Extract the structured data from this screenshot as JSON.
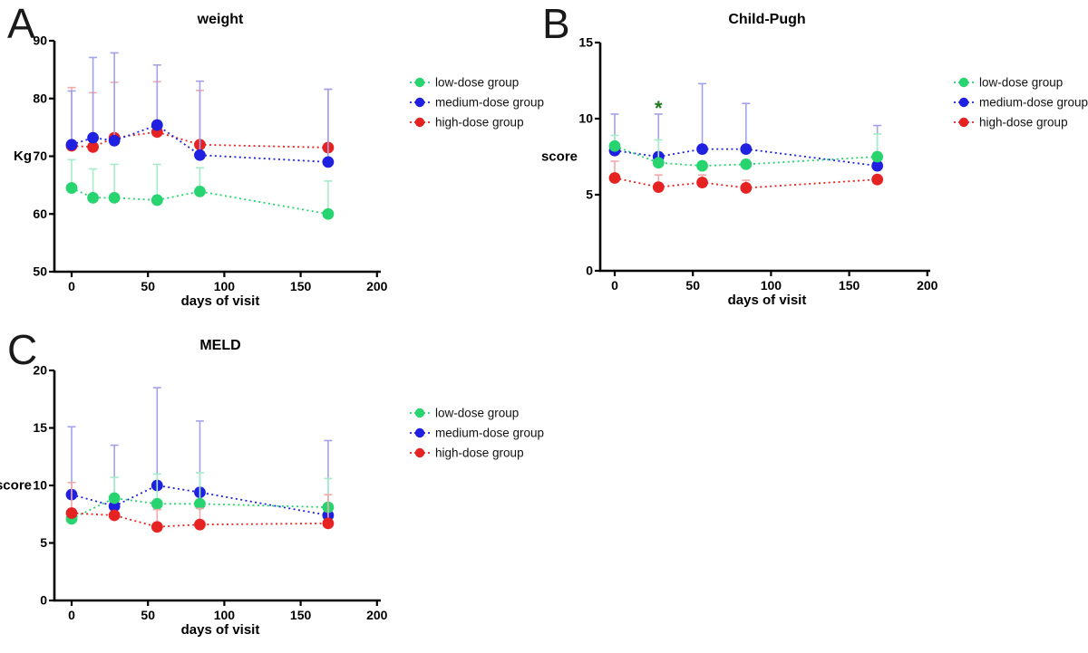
{
  "figure": {
    "background": "#ffffff",
    "legend_labels": [
      "low-dose group",
      "medium-dose group",
      "high-dose group"
    ]
  },
  "chart_data": [
    {
      "type": "line",
      "panel_label": "A",
      "title": "weight",
      "xlabel": "days of visit",
      "ylabel": "Kg",
      "x": [
        0,
        14,
        28,
        56,
        84,
        168
      ],
      "x_ticks": [
        0,
        50,
        100,
        150,
        200
      ],
      "y_ticks": [
        50,
        60,
        70,
        80,
        90
      ],
      "ylim": [
        50,
        90
      ],
      "grid": false,
      "legend_position": "right",
      "error_bars": "upper-only",
      "line_style": "dotted",
      "draw_order": [
        2,
        0,
        1
      ],
      "series": [
        {
          "name": "low-dose group",
          "color": "#27d46f",
          "error_color": "#a6ecc9",
          "values": [
            64.5,
            62.8,
            62.8,
            62.4,
            63.9,
            60.0
          ],
          "error_top": [
            69.4,
            67.8,
            68.6,
            68.6,
            68.0,
            65.7
          ]
        },
        {
          "name": "medium-dose group",
          "color": "#2020e0",
          "error_color": "#a2a2ea",
          "values": [
            72.0,
            73.2,
            72.7,
            75.4,
            70.2,
            69.0
          ],
          "error_top": [
            81.3,
            87.1,
            87.9,
            85.8,
            83.0,
            81.6
          ]
        },
        {
          "name": "high-dose group",
          "color": "#e52323",
          "error_color": "#f2a9a9",
          "values": [
            71.8,
            71.6,
            73.2,
            74.2,
            72.0,
            71.5
          ],
          "error_top": [
            81.9,
            81.0,
            82.8,
            82.9,
            81.4,
            81.6
          ]
        }
      ],
      "annotations": []
    },
    {
      "type": "line",
      "panel_label": "B",
      "title": "Child-Pugh",
      "xlabel": "days of visit",
      "ylabel": "score",
      "x": [
        0,
        28,
        56,
        84,
        168
      ],
      "x_ticks": [
        0,
        50,
        100,
        150,
        200
      ],
      "y_ticks": [
        0,
        5,
        10,
        15
      ],
      "ylim": [
        0,
        15
      ],
      "grid": false,
      "legend_position": "right",
      "error_bars": "upper-only",
      "line_style": "dotted",
      "draw_order": [
        1,
        0,
        2
      ],
      "series": [
        {
          "name": "low-dose group",
          "color": "#27d46f",
          "error_color": "#a6ecc9",
          "values": [
            8.2,
            7.1,
            6.9,
            7.0,
            7.5
          ],
          "error_top": [
            8.9,
            8.6,
            null,
            null,
            9.0
          ]
        },
        {
          "name": "medium-dose group",
          "color": "#2020e0",
          "error_color": "#a2a2ea",
          "values": [
            7.9,
            7.5,
            8.0,
            8.0,
            6.9
          ],
          "error_top": [
            10.3,
            10.3,
            12.3,
            11.0,
            9.55
          ]
        },
        {
          "name": "high-dose group",
          "color": "#e52323",
          "error_color": "#f2a9a9",
          "values": [
            6.1,
            5.5,
            5.8,
            5.45,
            6.0
          ],
          "error_top": [
            7.2,
            6.3,
            6.3,
            5.95,
            null
          ]
        }
      ],
      "annotations": [
        {
          "text": "*",
          "x": 28,
          "y": 10.9,
          "color": "#1e7b1e"
        }
      ]
    },
    {
      "type": "line",
      "panel_label": "C",
      "title": "MELD",
      "xlabel": "days of visit",
      "ylabel": "score",
      "x": [
        0,
        28,
        56,
        84,
        168
      ],
      "x_ticks": [
        0,
        50,
        100,
        150,
        200
      ],
      "y_ticks": [
        0,
        5,
        10,
        15,
        20
      ],
      "ylim": [
        0,
        20
      ],
      "grid": false,
      "legend_position": "right",
      "error_bars": "upper-only",
      "line_style": "dotted",
      "draw_order": [
        1,
        0,
        2
      ],
      "series": [
        {
          "name": "low-dose group",
          "color": "#27d46f",
          "error_color": "#a6ecc9",
          "values": [
            7.1,
            8.9,
            8.4,
            8.4,
            8.1
          ],
          "error_top": [
            null,
            10.7,
            11.0,
            11.1,
            10.6
          ]
        },
        {
          "name": "medium-dose group",
          "color": "#2020e0",
          "error_color": "#a2a2ea",
          "values": [
            9.2,
            8.2,
            10.0,
            9.4,
            7.4
          ],
          "error_top": [
            15.1,
            13.5,
            18.5,
            15.6,
            13.9
          ]
        },
        {
          "name": "high-dose group",
          "color": "#e52323",
          "error_color": "#f2a9a9",
          "values": [
            7.6,
            7.4,
            6.4,
            6.6,
            6.7
          ],
          "error_top": [
            10.25,
            null,
            7.9,
            8.0,
            9.2
          ]
        }
      ],
      "annotations": []
    }
  ]
}
